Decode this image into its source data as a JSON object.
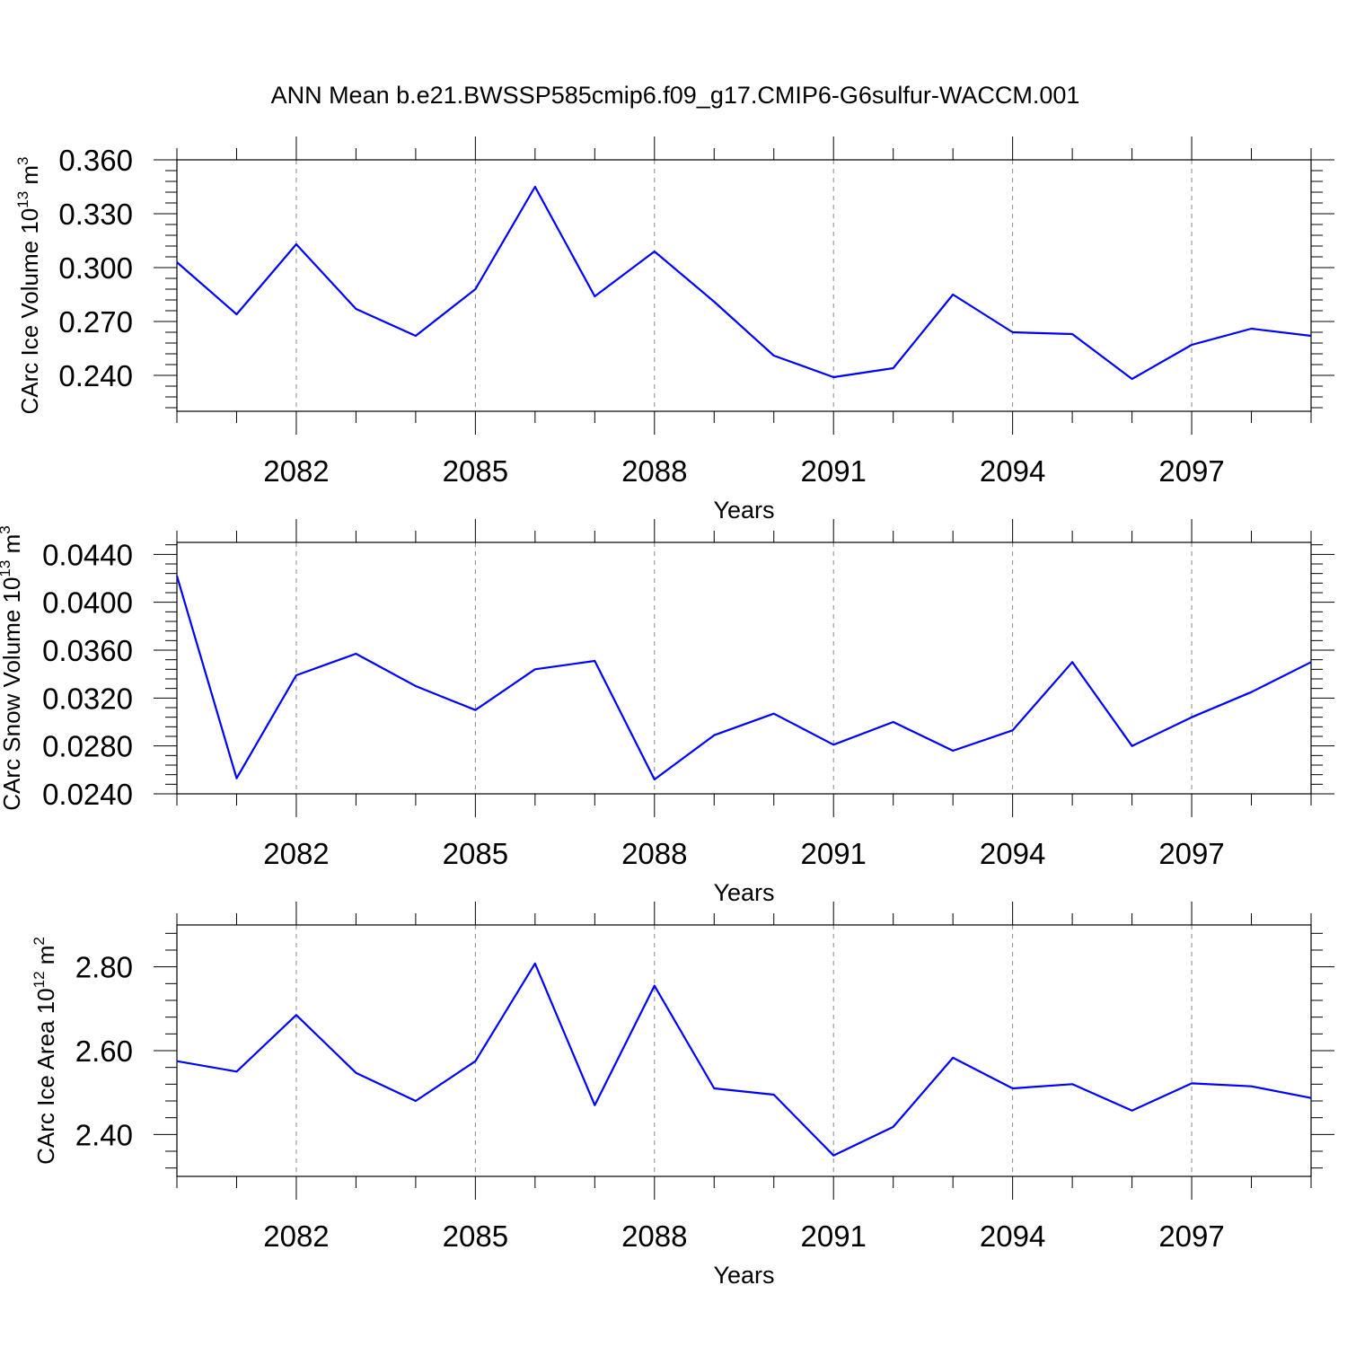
{
  "title": "ANN Mean b.e21.BWSSP585cmip6.f09_g17.CMIP6-G6sulfur-WACCM.001",
  "colors": {
    "line": "#0000ff",
    "axis": "#000000",
    "grid": "#888888",
    "background": "#ffffff"
  },
  "chart_data": [
    {
      "type": "line",
      "xlabel": "Years",
      "ylabel": "CArc Ice Volume 10",
      "ylabel_sup": "13",
      "ylabel_unit": "m",
      "ylabel_unit_sup": "3",
      "xlim": [
        2080,
        2099
      ],
      "ylim": [
        0.22,
        0.36
      ],
      "xticks": [
        2082,
        2085,
        2088,
        2091,
        2094,
        2097
      ],
      "xtick_labels": [
        "2082",
        "2085",
        "2088",
        "2091",
        "2094",
        "2097"
      ],
      "yticks": [
        0.24,
        0.27,
        0.3,
        0.33,
        0.36
      ],
      "ytick_labels": [
        "0.240",
        "0.270",
        "0.300",
        "0.330",
        "0.360"
      ],
      "grid": "vertical dashed at major x ticks",
      "x": [
        2080,
        2081,
        2082,
        2083,
        2084,
        2085,
        2086,
        2087,
        2088,
        2089,
        2090,
        2091,
        2092,
        2093,
        2094,
        2095,
        2096,
        2097,
        2098,
        2099
      ],
      "values": [
        0.303,
        0.274,
        0.313,
        0.277,
        0.262,
        0.288,
        0.345,
        0.284,
        0.309,
        0.281,
        0.251,
        0.239,
        0.244,
        0.285,
        0.264,
        0.263,
        0.238,
        0.257,
        0.266,
        0.262
      ]
    },
    {
      "type": "line",
      "xlabel": "Years",
      "ylabel": "CArc Snow Volume 10",
      "ylabel_sup": "13",
      "ylabel_unit": "m",
      "ylabel_unit_sup": "3",
      "xlim": [
        2080,
        2099
      ],
      "ylim": [
        0.024,
        0.045
      ],
      "xticks": [
        2082,
        2085,
        2088,
        2091,
        2094,
        2097
      ],
      "xtick_labels": [
        "2082",
        "2085",
        "2088",
        "2091",
        "2094",
        "2097"
      ],
      "yticks": [
        0.024,
        0.028,
        0.032,
        0.036,
        0.04,
        0.044
      ],
      "ytick_labels": [
        "0.0240",
        "0.0280",
        "0.0320",
        "0.0360",
        "0.0400",
        "0.0440"
      ],
      "grid": "vertical dashed at major x ticks",
      "x": [
        2080,
        2081,
        2082,
        2083,
        2084,
        2085,
        2086,
        2087,
        2088,
        2089,
        2090,
        2091,
        2092,
        2093,
        2094,
        2095,
        2096,
        2097,
        2098,
        2099
      ],
      "values": [
        0.0422,
        0.0253,
        0.0339,
        0.0357,
        0.033,
        0.031,
        0.0344,
        0.0351,
        0.0252,
        0.0289,
        0.0307,
        0.0281,
        0.03,
        0.0276,
        0.0293,
        0.035,
        0.028,
        0.0304,
        0.0325,
        0.035
      ]
    },
    {
      "type": "line",
      "xlabel": "Years",
      "ylabel": "CArc Ice Area 10",
      "ylabel_sup": "12",
      "ylabel_unit": "m",
      "ylabel_unit_sup": "2",
      "xlim": [
        2080,
        2099
      ],
      "ylim": [
        2.3,
        2.9
      ],
      "xticks": [
        2082,
        2085,
        2088,
        2091,
        2094,
        2097
      ],
      "xtick_labels": [
        "2082",
        "2085",
        "2088",
        "2091",
        "2094",
        "2097"
      ],
      "yticks": [
        2.4,
        2.6,
        2.8
      ],
      "ytick_labels": [
        "2.40",
        "2.60",
        "2.80"
      ],
      "grid": "vertical dashed at major x ticks",
      "x": [
        2080,
        2081,
        2082,
        2083,
        2084,
        2085,
        2086,
        2087,
        2088,
        2089,
        2090,
        2091,
        2092,
        2093,
        2094,
        2095,
        2096,
        2097,
        2098,
        2099
      ],
      "values": [
        2.575,
        2.55,
        2.685,
        2.547,
        2.48,
        2.575,
        2.808,
        2.47,
        2.755,
        2.51,
        2.495,
        2.35,
        2.418,
        2.583,
        2.51,
        2.52,
        2.457,
        2.522,
        2.515,
        2.487
      ]
    }
  ]
}
